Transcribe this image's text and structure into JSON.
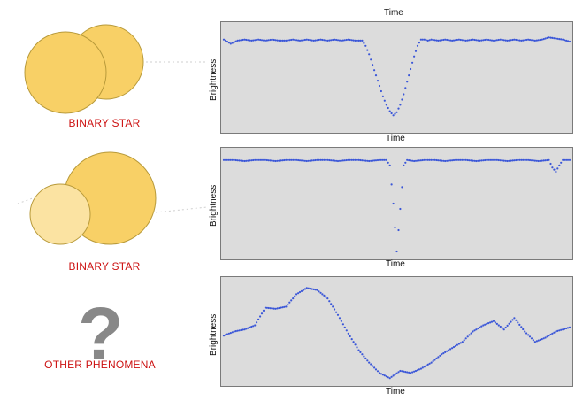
{
  "colors": {
    "label_red": "#cc1111",
    "star_fill": "#f8d066",
    "star_stroke": "#b89a3a",
    "star_small_fill": "#fbe3a2",
    "plot_bg": "#dcdcdc",
    "points": "#3a56d8",
    "question_mark": "#888888"
  },
  "panels": [
    {
      "id": "top",
      "label": "BINARY STAR",
      "illustration": "two-overlapping-stars-icon",
      "x_label_top": "Time",
      "x_label_bottom": "Time",
      "y_label": "Brightness"
    },
    {
      "id": "middle",
      "label": "BINARY STAR",
      "illustration": "large-star-with-small-companion-icon",
      "x_label_bottom": "Time",
      "y_label": "Brightness"
    },
    {
      "id": "bottom",
      "label": "OTHER PHENOMENA",
      "illustration": "question-mark-icon",
      "question_glyph": "?",
      "x_label_bottom": "Time",
      "y_label": "Brightness"
    }
  ],
  "chart_data": [
    {
      "type": "scatter",
      "xlabel": "Time",
      "ylabel": "Brightness",
      "description_key": "top",
      "x": [
        0,
        2,
        4,
        6,
        8,
        10,
        12,
        14,
        16,
        18,
        20,
        22,
        24,
        26,
        28,
        30,
        32,
        34,
        36,
        38,
        40,
        41,
        42,
        43,
        44,
        45,
        46,
        47,
        48,
        49,
        50,
        51,
        52,
        53,
        54,
        55,
        56,
        57,
        58,
        59,
        60,
        62,
        64,
        66,
        68,
        70,
        72,
        74,
        76,
        78,
        80,
        82,
        84,
        86,
        88,
        90,
        92,
        94,
        96,
        98,
        100
      ],
      "y": [
        0.86,
        0.82,
        0.85,
        0.86,
        0.85,
        0.86,
        0.85,
        0.86,
        0.85,
        0.85,
        0.86,
        0.85,
        0.86,
        0.85,
        0.86,
        0.85,
        0.86,
        0.85,
        0.86,
        0.85,
        0.85,
        0.8,
        0.72,
        0.62,
        0.52,
        0.42,
        0.32,
        0.24,
        0.18,
        0.14,
        0.17,
        0.24,
        0.34,
        0.46,
        0.58,
        0.7,
        0.8,
        0.86,
        0.86,
        0.85,
        0.86,
        0.85,
        0.86,
        0.85,
        0.86,
        0.85,
        0.86,
        0.85,
        0.86,
        0.85,
        0.86,
        0.85,
        0.86,
        0.85,
        0.86,
        0.85,
        0.86,
        0.88,
        0.87,
        0.86,
        0.84
      ],
      "ylim": [
        0,
        1
      ],
      "xlim": [
        0,
        100
      ]
    },
    {
      "type": "scatter",
      "xlabel": "Time",
      "ylabel": "Brightness",
      "description_key": "middle",
      "x": [
        0,
        3,
        6,
        9,
        12,
        15,
        18,
        21,
        24,
        27,
        30,
        33,
        36,
        39,
        42,
        45,
        47,
        48,
        49,
        50,
        51,
        52,
        53,
        55,
        58,
        61,
        64,
        67,
        70,
        73,
        76,
        79,
        82,
        85,
        88,
        91,
        94,
        95,
        96,
        97,
        98,
        100
      ],
      "y": [
        0.91,
        0.91,
        0.9,
        0.91,
        0.91,
        0.9,
        0.91,
        0.91,
        0.9,
        0.91,
        0.91,
        0.9,
        0.91,
        0.91,
        0.9,
        0.91,
        0.91,
        0.86,
        0.5,
        0.05,
        0.45,
        0.86,
        0.91,
        0.9,
        0.91,
        0.91,
        0.9,
        0.91,
        0.91,
        0.9,
        0.91,
        0.91,
        0.9,
        0.91,
        0.91,
        0.9,
        0.91,
        0.84,
        0.8,
        0.86,
        0.91,
        0.91
      ],
      "ylim": [
        0,
        1
      ],
      "xlim": [
        0,
        100
      ]
    },
    {
      "type": "scatter",
      "xlabel": "Time",
      "ylabel": "Brightness",
      "description_key": "bottom",
      "x": [
        0,
        3,
        6,
        9,
        12,
        15,
        18,
        21,
        24,
        27,
        30,
        33,
        36,
        39,
        42,
        45,
        48,
        51,
        54,
        57,
        60,
        63,
        66,
        69,
        72,
        75,
        78,
        81,
        84,
        87,
        90,
        93,
        96,
        100
      ],
      "y": [
        0.46,
        0.5,
        0.52,
        0.56,
        0.73,
        0.72,
        0.74,
        0.86,
        0.92,
        0.9,
        0.82,
        0.66,
        0.48,
        0.32,
        0.2,
        0.1,
        0.05,
        0.12,
        0.1,
        0.14,
        0.2,
        0.28,
        0.34,
        0.4,
        0.5,
        0.56,
        0.6,
        0.52,
        0.63,
        0.5,
        0.4,
        0.44,
        0.5,
        0.54
      ],
      "ylim": [
        0,
        1
      ],
      "xlim": [
        0,
        100
      ]
    }
  ]
}
